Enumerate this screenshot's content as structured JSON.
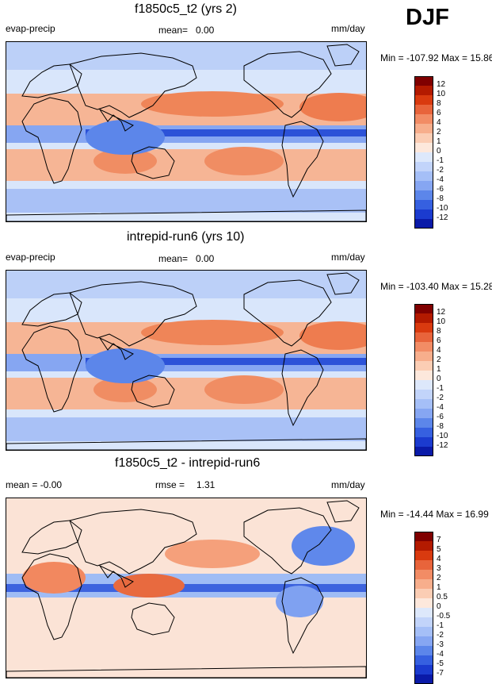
{
  "season": "DJF",
  "panels": [
    {
      "title": "f1850c5_t2 (yrs 2)",
      "left_label": "evap-precip",
      "stat_label": "mean=",
      "stat_value": "0.00",
      "stat2_label": "",
      "stat2_value": "",
      "units": "mm/day",
      "minmax": "Min = -107.92 Max =  15.86"
    },
    {
      "title": "intrepid-run6 (yrs 10)",
      "left_label": "evap-precip",
      "stat_label": "mean=",
      "stat_value": "0.00",
      "stat2_label": "",
      "stat2_value": "",
      "units": "mm/day",
      "minmax": "Min = -103.40 Max =  15.28"
    },
    {
      "title": "f1850c5_t2 - intrepid-run6",
      "left_label": "mean =  -0.00",
      "stat_label": "rmse =",
      "stat_value": "1.31",
      "units": "mm/day",
      "minmax": "Min = -14.44 Max =  16.99"
    }
  ],
  "colorbars": {
    "main": {
      "labels": [
        "12",
        "10",
        "8",
        "6",
        "4",
        "2",
        "1",
        "0",
        "-1",
        "-2",
        "-4",
        "-6",
        "-8",
        "-10",
        "-12"
      ],
      "colors": [
        "#800000",
        "#b31a00",
        "#d93a0f",
        "#e8643b",
        "#f28c65",
        "#f7ae8c",
        "#fbcdb4",
        "#fde8dc",
        "#dde8fb",
        "#c2d4fa",
        "#a5bff7",
        "#86a6f2",
        "#5c86ea",
        "#3660e0",
        "#1b3bcf",
        "#0a1aa8"
      ]
    },
    "diff": {
      "labels": [
        "7",
        "5",
        "4",
        "3",
        "2",
        "1",
        "0.5",
        "0",
        "-0.5",
        "-1",
        "-2",
        "-3",
        "-4",
        "-5",
        "-7"
      ],
      "colors": [
        "#800000",
        "#b31a00",
        "#d93a0f",
        "#e8643b",
        "#f28c65",
        "#f7ae8c",
        "#fbcdb4",
        "#fde8dc",
        "#dde8fb",
        "#c2d4fa",
        "#a5bff7",
        "#86a6f2",
        "#5c86ea",
        "#3660e0",
        "#1b3bcf",
        "#0a1aa8"
      ]
    }
  },
  "chart_data": [
    {
      "type": "heatmap",
      "title": "f1850c5_t2 (yrs 2)",
      "variable": "evap-precip",
      "units": "mm/day",
      "mean": 0.0,
      "min": -107.92,
      "max": 15.86,
      "levels": [
        -12,
        -10,
        -8,
        -6,
        -4,
        -2,
        -1,
        0,
        1,
        2,
        4,
        6,
        8,
        10,
        12
      ]
    },
    {
      "type": "heatmap",
      "title": "intrepid-run6 (yrs 10)",
      "variable": "evap-precip",
      "units": "mm/day",
      "mean": 0.0,
      "min": -103.4,
      "max": 15.28,
      "levels": [
        -12,
        -10,
        -8,
        -6,
        -4,
        -2,
        -1,
        0,
        1,
        2,
        4,
        6,
        8,
        10,
        12
      ]
    },
    {
      "type": "heatmap",
      "title": "f1850c5_t2 - intrepid-run6",
      "units": "mm/day",
      "mean": -0.0,
      "rmse": 1.31,
      "min": -14.44,
      "max": 16.99,
      "levels": [
        -7,
        -5,
        -4,
        -3,
        -2,
        -1,
        -0.5,
        0,
        0.5,
        1,
        2,
        3,
        4,
        5,
        7
      ]
    }
  ]
}
